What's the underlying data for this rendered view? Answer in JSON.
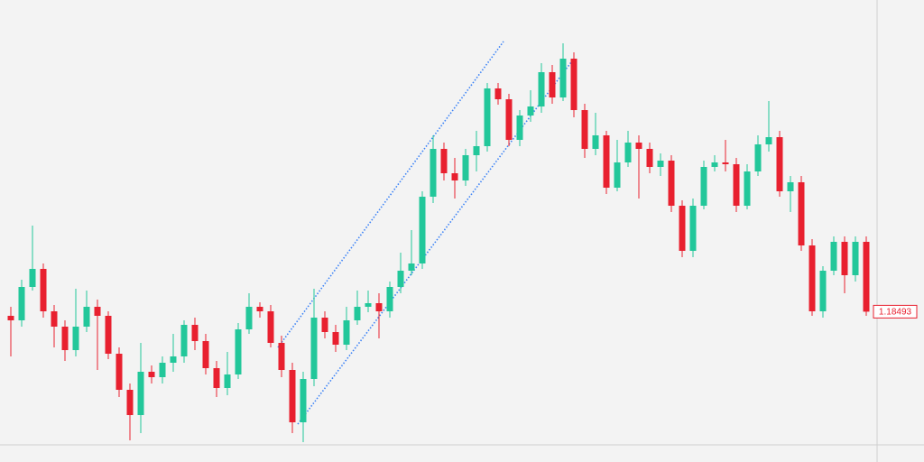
{
  "chart_data": {
    "type": "candlestick",
    "up_color": "#22c79a",
    "down_color": "#e8202f",
    "ylim": [
      1.1776,
      1.2022
    ],
    "last_price_label": "1.18493",
    "open": [
      1.1847,
      1.18445,
      1.1863,
      1.1873,
      1.18495,
      1.1841,
      1.1828,
      1.1841,
      1.1852,
      1.1847,
      1.1826,
      1.1806,
      1.1792,
      1.1816,
      1.1813,
      1.1821,
      1.18245,
      1.1842,
      1.1833,
      1.1818,
      1.1807,
      1.18145,
      1.18395,
      1.1852,
      1.18495,
      1.1832,
      1.1817,
      1.1788,
      1.1812,
      1.1846,
      1.1838,
      1.1831,
      1.18445,
      1.1852,
      1.1854,
      1.18495,
      1.1863,
      1.1872,
      1.1876,
      1.1913,
      1.19395,
      1.1926,
      1.1922,
      1.1936,
      1.1941,
      1.1973,
      1.1967,
      1.19445,
      1.1958,
      1.1963,
      1.1982,
      1.1968,
      1.19895,
      1.1961,
      1.19395,
      1.1947,
      1.1918,
      1.1932,
      1.1943,
      1.19395,
      1.19295,
      1.1933,
      1.1908,
      1.1883,
      1.1908,
      1.19295,
      1.1932,
      1.1931,
      1.1908,
      1.1927,
      1.1942,
      1.1946,
      1.1916,
      1.1921,
      1.1886,
      1.18495,
      1.1872,
      1.1888,
      1.18695,
      1.1888
    ],
    "high": [
      1.1852,
      1.1867,
      1.1897,
      1.1876,
      1.1853,
      1.18445,
      1.1862,
      1.1861,
      1.1856,
      1.18495,
      1.18295,
      1.18095,
      1.1832,
      1.18195,
      1.18245,
      1.1837,
      1.18445,
      1.1846,
      1.1837,
      1.1822,
      1.1827,
      1.1843,
      1.18595,
      1.18545,
      1.1853,
      1.1836,
      1.1821,
      1.1816,
      1.1862,
      1.18495,
      1.1842,
      1.1852,
      1.1861,
      1.1861,
      1.18595,
      1.1866,
      1.1882,
      1.18945,
      1.1916,
      1.1947,
      1.1943,
      1.19345,
      1.19395,
      1.19495,
      1.1976,
      1.1976,
      1.197,
      1.1961,
      1.1972,
      1.1987,
      1.1986,
      1.1998,
      1.1993,
      1.19645,
      1.19595,
      1.19495,
      1.19445,
      1.19495,
      1.1947,
      1.1943,
      1.1937,
      1.1936,
      1.1911,
      1.1912,
      1.1933,
      1.1936,
      1.19445,
      1.19345,
      1.1931,
      1.1947,
      1.1966,
      1.19495,
      1.19245,
      1.19245,
      1.18895,
      1.18745,
      1.1891,
      1.1891,
      1.1891,
      1.1891
    ],
    "low": [
      1.18245,
      1.1841,
      1.1861,
      1.1846,
      1.18295,
      1.1822,
      1.18245,
      1.1838,
      1.1817,
      1.1823,
      1.1802,
      1.1778,
      1.1782,
      1.18095,
      1.18095,
      1.1816,
      1.1821,
      1.1828,
      1.18145,
      1.1802,
      1.1803,
      1.1812,
      1.1837,
      1.1846,
      1.18295,
      1.1813,
      1.1782,
      1.1777,
      1.1808,
      1.18345,
      1.1827,
      1.1828,
      1.1842,
      1.1849,
      1.18345,
      1.1846,
      1.18595,
      1.18695,
      1.1873,
      1.19095,
      1.1922,
      1.1912,
      1.1919,
      1.1927,
      1.1938,
      1.1964,
      1.1941,
      1.1941,
      1.19545,
      1.19595,
      1.19645,
      1.1966,
      1.1957,
      1.19345,
      1.1936,
      1.19145,
      1.1916,
      1.19295,
      1.1912,
      1.1926,
      1.19245,
      1.19045,
      1.18795,
      1.18795,
      1.1906,
      1.1927,
      1.1927,
      1.19045,
      1.1906,
      1.19245,
      1.1938,
      1.1913,
      1.19045,
      1.1883,
      1.1847,
      1.1846,
      1.18695,
      1.18595,
      1.1866,
      1.1847
    ],
    "close": [
      1.18445,
      1.1863,
      1.1873,
      1.18495,
      1.1841,
      1.1828,
      1.1841,
      1.1852,
      1.1847,
      1.1826,
      1.1806,
      1.1792,
      1.1816,
      1.1813,
      1.1821,
      1.18245,
      1.1842,
      1.1833,
      1.1818,
      1.1807,
      1.18145,
      1.18395,
      1.1852,
      1.18495,
      1.1832,
      1.1817,
      1.1788,
      1.1812,
      1.1846,
      1.1838,
      1.1831,
      1.18445,
      1.1852,
      1.1854,
      1.18495,
      1.1863,
      1.1872,
      1.1876,
      1.1913,
      1.19395,
      1.1926,
      1.1922,
      1.1936,
      1.1941,
      1.1973,
      1.1967,
      1.19445,
      1.1958,
      1.1963,
      1.1982,
      1.1968,
      1.19895,
      1.1961,
      1.19395,
      1.1947,
      1.1918,
      1.1932,
      1.1943,
      1.19395,
      1.19295,
      1.1933,
      1.1908,
      1.1883,
      1.1908,
      1.19295,
      1.1932,
      1.1931,
      1.1908,
      1.1927,
      1.1942,
      1.1946,
      1.1916,
      1.1921,
      1.1886,
      1.18495,
      1.1872,
      1.1888,
      1.18695,
      1.1888,
      1.18493
    ]
  }
}
